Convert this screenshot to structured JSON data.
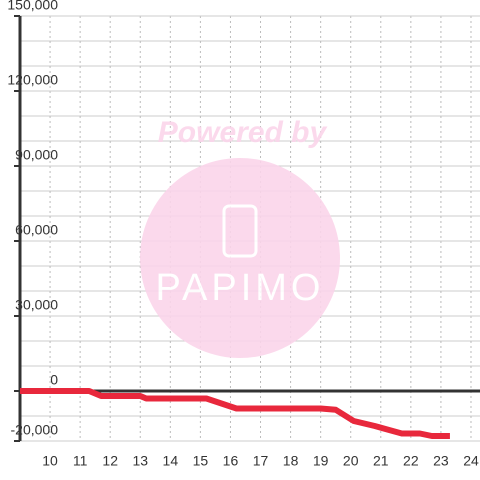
{
  "chart_data": {
    "type": "line",
    "watermark": {
      "title": "Powered by",
      "brand": "PAPIMO"
    },
    "x": [
      9,
      11.3,
      11.7,
      13,
      13.2,
      15.2,
      15.7,
      16.2,
      19,
      19.5,
      20.1,
      20.8,
      21.7,
      22.3,
      22.7,
      23.3
    ],
    "series": [
      {
        "color": "#e8283c",
        "values": [
          0,
          0,
          -2000,
          -2000,
          -3000,
          -3000,
          -5000,
          -7000,
          -7000,
          -7500,
          -12000,
          -14000,
          -17000,
          -17000,
          -18000,
          -18000
        ]
      }
    ],
    "xlim": [
      9,
      24.3
    ],
    "xticks": [
      10,
      11,
      12,
      13,
      14,
      15,
      16,
      17,
      18,
      19,
      20,
      21,
      22,
      23,
      24
    ],
    "ylim": [
      -20000,
      150000
    ],
    "yticks": [
      {
        "value": -20000,
        "label": "-20,000"
      },
      0,
      {
        "value": 30000,
        "label": "30,000"
      },
      {
        "value": 60000,
        "label": "60,000"
      },
      {
        "value": 90000,
        "label": "90,000"
      },
      {
        "value": 120000,
        "label": "120,000"
      },
      {
        "value": 150000,
        "label": "150,000"
      }
    ],
    "yminorticks": [
      -10000,
      10000,
      20000,
      40000,
      50000,
      70000,
      80000,
      100000,
      110000,
      130000,
      140000
    ],
    "grid": true
  }
}
